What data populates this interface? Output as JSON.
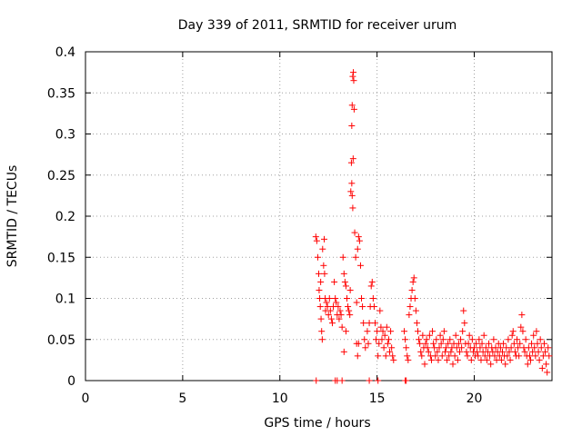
{
  "chart_data": {
    "type": "scatter",
    "title": "Day 339 of 2011, SRMTID for receiver urum",
    "xlabel": "GPS time / hours",
    "ylabel": "SRMTID / TECUs",
    "xlim": [
      0,
      24
    ],
    "ylim": [
      0,
      0.4
    ],
    "grid": true,
    "x_ticks": [
      0,
      5,
      10,
      15,
      20
    ],
    "x_tick_labels": [
      "0",
      "5",
      "10",
      "15",
      "20"
    ],
    "y_ticks": [
      0,
      0.05,
      0.1,
      0.15,
      0.2,
      0.25,
      0.3,
      0.35,
      0.4
    ],
    "y_tick_labels": [
      "0",
      "0.05",
      "0.1",
      "0.15",
      "0.2",
      "0.25",
      "0.3",
      "0.35",
      "0.4"
    ],
    "marker": "+",
    "color": "#ff0000",
    "series": [
      {
        "name": "SRMTID",
        "points": [
          [
            11.85,
            0.175
          ],
          [
            11.9,
            0.17
          ],
          [
            11.95,
            0.15
          ],
          [
            12.0,
            0.13
          ],
          [
            12.02,
            0.11
          ],
          [
            12.05,
            0.1
          ],
          [
            12.08,
            0.09
          ],
          [
            12.1,
            0.12
          ],
          [
            12.12,
            0.075
          ],
          [
            12.15,
            0.06
          ],
          [
            12.18,
            0.05
          ],
          [
            12.2,
            0.16
          ],
          [
            12.25,
            0.14
          ],
          [
            12.28,
            0.172
          ],
          [
            12.3,
            0.13
          ],
          [
            12.33,
            0.1
          ],
          [
            12.35,
            0.085
          ],
          [
            12.4,
            0.095
          ],
          [
            12.45,
            0.09
          ],
          [
            12.5,
            0.08
          ],
          [
            12.55,
            0.1
          ],
          [
            12.6,
            0.085
          ],
          [
            12.65,
            0.075
          ],
          [
            12.7,
            0.07
          ],
          [
            12.75,
            0.09
          ],
          [
            12.8,
            0.12
          ],
          [
            12.85,
            0.1
          ],
          [
            12.9,
            0.095
          ],
          [
            12.95,
            0.08
          ],
          [
            13.0,
            0.09
          ],
          [
            13.05,
            0.075
          ],
          [
            13.1,
            0.085
          ],
          [
            13.15,
            0.08
          ],
          [
            13.2,
            0.065
          ],
          [
            13.25,
            0.15
          ],
          [
            13.3,
            0.13
          ],
          [
            13.35,
            0.12
          ],
          [
            13.4,
            0.115
          ],
          [
            13.45,
            0.1
          ],
          [
            13.5,
            0.09
          ],
          [
            13.55,
            0.085
          ],
          [
            13.6,
            0.08
          ],
          [
            13.62,
            0.11
          ],
          [
            13.3,
            0.035
          ],
          [
            13.4,
            0.06
          ],
          [
            13.65,
            0.23
          ],
          [
            13.68,
            0.265
          ],
          [
            13.7,
            0.31
          ],
          [
            13.72,
            0.335
          ],
          [
            13.75,
            0.37
          ],
          [
            13.78,
            0.375
          ],
          [
            13.8,
            0.365
          ],
          [
            13.82,
            0.33
          ],
          [
            13.77,
            0.27
          ],
          [
            13.72,
            0.225
          ],
          [
            13.75,
            0.21
          ],
          [
            13.7,
            0.24
          ],
          [
            13.85,
            0.18
          ],
          [
            13.9,
            0.15
          ],
          [
            13.95,
            0.095
          ],
          [
            14.0,
            0.16
          ],
          [
            14.05,
            0.175
          ],
          [
            14.1,
            0.17
          ],
          [
            14.15,
            0.14
          ],
          [
            14.2,
            0.1
          ],
          [
            14.25,
            0.09
          ],
          [
            14.3,
            0.07
          ],
          [
            14.35,
            0.05
          ],
          [
            14.4,
            0.04
          ],
          [
            13.95,
            0.045
          ],
          [
            14.0,
            0.03
          ],
          [
            14.05,
            0.045
          ],
          [
            14.5,
            0.06
          ],
          [
            14.55,
            0.045
          ],
          [
            14.6,
            0.07
          ],
          [
            14.65,
            0.09
          ],
          [
            14.7,
            0.115
          ],
          [
            14.75,
            0.12
          ],
          [
            14.8,
            0.1
          ],
          [
            14.85,
            0.09
          ],
          [
            14.9,
            0.07
          ],
          [
            14.95,
            0.05
          ],
          [
            15.0,
            0.06
          ],
          [
            15.05,
            0.03
          ],
          [
            15.1,
            0.045
          ],
          [
            15.15,
            0.085
          ],
          [
            15.2,
            0.065
          ],
          [
            15.25,
            0.05
          ],
          [
            15.3,
            0.06
          ],
          [
            15.35,
            0.04
          ],
          [
            15.4,
            0.055
          ],
          [
            15.45,
            0.03
          ],
          [
            15.5,
            0.065
          ],
          [
            15.55,
            0.045
          ],
          [
            15.6,
            0.05
          ],
          [
            15.65,
            0.035
          ],
          [
            15.7,
            0.06
          ],
          [
            15.75,
            0.04
          ],
          [
            15.8,
            0.03
          ],
          [
            15.85,
            0.025
          ],
          [
            16.4,
            0.06
          ],
          [
            16.45,
            0.05
          ],
          [
            16.5,
            0.04
          ],
          [
            16.55,
            0.03
          ],
          [
            16.6,
            0.025
          ],
          [
            16.65,
            0.08
          ],
          [
            16.7,
            0.09
          ],
          [
            16.75,
            0.1
          ],
          [
            16.8,
            0.11
          ],
          [
            16.85,
            0.12
          ],
          [
            16.9,
            0.125
          ],
          [
            16.95,
            0.1
          ],
          [
            17.0,
            0.085
          ],
          [
            17.05,
            0.07
          ],
          [
            17.1,
            0.06
          ],
          [
            17.15,
            0.05
          ],
          [
            17.2,
            0.045
          ],
          [
            17.25,
            0.035
          ],
          [
            17.3,
            0.03
          ],
          [
            17.35,
            0.055
          ],
          [
            17.4,
            0.04
          ],
          [
            17.45,
            0.02
          ],
          [
            17.5,
            0.045
          ],
          [
            17.55,
            0.05
          ],
          [
            17.6,
            0.04
          ],
          [
            17.65,
            0.035
          ],
          [
            17.7,
            0.055
          ],
          [
            17.75,
            0.03
          ],
          [
            17.8,
            0.025
          ],
          [
            17.85,
            0.06
          ],
          [
            17.9,
            0.045
          ],
          [
            17.95,
            0.04
          ],
          [
            18.0,
            0.03
          ],
          [
            18.05,
            0.05
          ],
          [
            18.1,
            0.035
          ],
          [
            18.15,
            0.025
          ],
          [
            18.2,
            0.04
          ],
          [
            18.25,
            0.055
          ],
          [
            18.3,
            0.045
          ],
          [
            18.35,
            0.03
          ],
          [
            18.4,
            0.05
          ],
          [
            18.45,
            0.06
          ],
          [
            18.5,
            0.035
          ],
          [
            18.55,
            0.04
          ],
          [
            18.6,
            0.025
          ],
          [
            18.65,
            0.045
          ],
          [
            18.7,
            0.03
          ],
          [
            18.75,
            0.05
          ],
          [
            18.8,
            0.035
          ],
          [
            18.85,
            0.04
          ],
          [
            18.9,
            0.02
          ],
          [
            18.95,
            0.045
          ],
          [
            19.0,
            0.03
          ],
          [
            19.05,
            0.055
          ],
          [
            19.1,
            0.04
          ],
          [
            19.15,
            0.025
          ],
          [
            19.2,
            0.045
          ],
          [
            19.25,
            0.035
          ],
          [
            19.3,
            0.05
          ],
          [
            19.35,
            0.04
          ],
          [
            19.4,
            0.06
          ],
          [
            19.45,
            0.085
          ],
          [
            19.5,
            0.07
          ],
          [
            19.55,
            0.045
          ],
          [
            19.6,
            0.035
          ],
          [
            19.65,
            0.03
          ],
          [
            19.7,
            0.045
          ],
          [
            19.75,
            0.055
          ],
          [
            19.8,
            0.04
          ],
          [
            19.85,
            0.025
          ],
          [
            19.9,
            0.05
          ],
          [
            19.95,
            0.035
          ],
          [
            20.0,
            0.04
          ],
          [
            20.05,
            0.03
          ],
          [
            20.1,
            0.045
          ],
          [
            20.15,
            0.035
          ],
          [
            20.2,
            0.03
          ],
          [
            20.25,
            0.05
          ],
          [
            20.3,
            0.04
          ],
          [
            20.35,
            0.025
          ],
          [
            20.4,
            0.045
          ],
          [
            20.45,
            0.035
          ],
          [
            20.5,
            0.055
          ],
          [
            20.55,
            0.03
          ],
          [
            20.6,
            0.04
          ],
          [
            20.65,
            0.025
          ],
          [
            20.7,
            0.035
          ],
          [
            20.75,
            0.045
          ],
          [
            20.8,
            0.03
          ],
          [
            20.85,
            0.02
          ],
          [
            20.9,
            0.04
          ],
          [
            20.95,
            0.035
          ],
          [
            21.0,
            0.05
          ],
          [
            21.05,
            0.03
          ],
          [
            21.1,
            0.04
          ],
          [
            21.15,
            0.025
          ],
          [
            21.2,
            0.035
          ],
          [
            21.25,
            0.045
          ],
          [
            21.3,
            0.03
          ],
          [
            21.35,
            0.04
          ],
          [
            21.4,
            0.025
          ],
          [
            21.45,
            0.035
          ],
          [
            21.5,
            0.045
          ],
          [
            21.55,
            0.03
          ],
          [
            21.6,
            0.02
          ],
          [
            21.65,
            0.04
          ],
          [
            21.7,
            0.03
          ],
          [
            21.75,
            0.05
          ],
          [
            21.8,
            0.035
          ],
          [
            21.85,
            0.025
          ],
          [
            21.9,
            0.04
          ],
          [
            21.95,
            0.055
          ],
          [
            22.0,
            0.06
          ],
          [
            22.05,
            0.045
          ],
          [
            22.1,
            0.035
          ],
          [
            22.15,
            0.03
          ],
          [
            22.2,
            0.05
          ],
          [
            22.25,
            0.04
          ],
          [
            22.3,
            0.03
          ],
          [
            22.35,
            0.045
          ],
          [
            22.4,
            0.065
          ],
          [
            22.45,
            0.08
          ],
          [
            22.5,
            0.06
          ],
          [
            22.55,
            0.04
          ],
          [
            22.6,
            0.035
          ],
          [
            22.65,
            0.05
          ],
          [
            22.7,
            0.03
          ],
          [
            22.75,
            0.02
          ],
          [
            22.8,
            0.04
          ],
          [
            22.85,
            0.03
          ],
          [
            22.9,
            0.025
          ],
          [
            22.95,
            0.045
          ],
          [
            23.0,
            0.035
          ],
          [
            23.05,
            0.055
          ],
          [
            23.1,
            0.04
          ],
          [
            23.15,
            0.03
          ],
          [
            23.2,
            0.06
          ],
          [
            23.25,
            0.045
          ],
          [
            23.3,
            0.035
          ],
          [
            23.35,
            0.025
          ],
          [
            23.4,
            0.05
          ],
          [
            23.45,
            0.04
          ],
          [
            23.5,
            0.015
          ],
          [
            23.55,
            0.03
          ],
          [
            23.6,
            0.045
          ],
          [
            23.65,
            0.035
          ],
          [
            23.7,
            0.02
          ],
          [
            23.75,
            0.01
          ],
          [
            23.8,
            0.04
          ],
          [
            23.85,
            0.03
          ],
          [
            11.87,
            0.0
          ],
          [
            12.85,
            0.0
          ],
          [
            12.95,
            0.0
          ],
          [
            13.2,
            0.0
          ],
          [
            14.6,
            0.0
          ],
          [
            15.05,
            0.0
          ],
          [
            16.45,
            0.0
          ],
          [
            16.5,
            0.0
          ]
        ]
      }
    ]
  }
}
